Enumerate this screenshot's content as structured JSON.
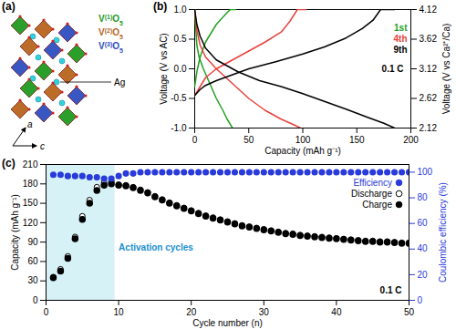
{
  "chart_data": [
    {
      "panel_label": "(b)",
      "type": "line",
      "x_label": "Capacity (mAh g⁻¹)",
      "y_label": "Voltage (V vs AC)",
      "y2_label": "Voltage (V vs Ca²⁺/Ca)",
      "annotation": "0.1 C",
      "xlim": [
        0,
        200
      ],
      "xticks": [
        0,
        50,
        100,
        150,
        200
      ],
      "ylim": [
        -1,
        1
      ],
      "yticks": [
        {
          "value": -1,
          "label": "-1.0"
        },
        {
          "value": -0.5,
          "label": "-0.5"
        },
        {
          "value": 0,
          "label": "0.0"
        },
        {
          "value": 0.5,
          "label": "0.5"
        },
        {
          "value": 1,
          "label": "1.0"
        }
      ],
      "y2lim": [
        2.12,
        4.12
      ],
      "y2ticks": [
        2.12,
        2.62,
        3.12,
        3.62,
        4.12
      ],
      "series": [
        {
          "name": "1st",
          "color": "#22a022",
          "x": [
            0,
            1,
            2,
            4,
            8,
            14,
            20,
            26,
            30,
            35,
            null,
            0,
            2,
            5,
            10,
            15,
            20,
            25,
            30,
            33,
            38
          ],
          "values": [
            1.0,
            0.7,
            0.4,
            0.2,
            0.0,
            -0.25,
            -0.5,
            -0.7,
            -0.85,
            -1.0,
            null,
            -0.3,
            -0.05,
            0.2,
            0.45,
            0.6,
            0.75,
            0.85,
            0.95,
            1.0,
            1.0
          ]
        },
        {
          "name": "4th",
          "color": "#e8413c",
          "x": [
            0,
            2,
            5,
            10,
            20,
            35,
            50,
            65,
            80,
            90,
            98,
            null,
            0,
            5,
            10,
            20,
            35,
            50,
            65,
            80,
            88,
            95,
            103
          ],
          "values": [
            1.0,
            0.65,
            0.4,
            0.2,
            0.0,
            -0.25,
            -0.5,
            -0.7,
            -0.85,
            -0.93,
            -1.0,
            null,
            -0.45,
            -0.3,
            -0.15,
            0.0,
            0.15,
            0.3,
            0.45,
            0.62,
            0.8,
            1.0,
            1.0
          ]
        },
        {
          "name": "9th",
          "color": "#000000",
          "x": [
            0,
            2,
            5,
            10,
            20,
            40,
            60,
            80,
            100,
            120,
            140,
            160,
            175,
            185,
            null,
            0,
            5,
            10,
            20,
            35,
            50,
            75,
            100,
            120,
            140,
            155,
            165,
            172,
            185
          ],
          "values": [
            1.0,
            0.75,
            0.55,
            0.35,
            0.15,
            -0.05,
            -0.2,
            -0.3,
            -0.42,
            -0.55,
            -0.68,
            -0.82,
            -0.92,
            -1.0,
            null,
            -0.45,
            -0.35,
            -0.28,
            -0.2,
            -0.1,
            0.0,
            0.12,
            0.25,
            0.37,
            0.52,
            0.68,
            0.82,
            1.0,
            1.0
          ]
        }
      ]
    },
    {
      "panel_label": "(c)",
      "type": "scatter",
      "x_label": "Cycle number (n)",
      "y_label": "Capacity (mAh g⁻¹)",
      "y2_label": "Coulombic efficiency (%)",
      "annotation": "0.1 C",
      "highlight": {
        "label": "Activation cycles",
        "x": [
          0,
          9.5
        ]
      },
      "xlim": [
        0,
        50
      ],
      "xticks": [
        0,
        10,
        20,
        30,
        40,
        50
      ],
      "ylim": [
        0,
        210
      ],
      "yticks": [
        0,
        30,
        60,
        90,
        120,
        150,
        180,
        210
      ],
      "y2lim": [
        0,
        106
      ],
      "y2ticks": [
        0,
        20,
        40,
        60,
        80,
        100
      ],
      "legend": "top-right",
      "x": [
        1,
        2,
        3,
        4,
        5,
        6,
        7,
        8,
        9,
        10,
        11,
        12,
        13,
        14,
        15,
        16,
        17,
        18,
        19,
        20,
        21,
        22,
        23,
        24,
        25,
        26,
        27,
        28,
        29,
        30,
        31,
        32,
        33,
        34,
        35,
        36,
        37,
        38,
        39,
        40,
        41,
        42,
        43,
        44,
        45,
        46,
        47,
        48,
        49,
        50
      ],
      "series": [
        {
          "name": "Efficiency",
          "color": "#2a3bdb",
          "marker": "circle",
          "axis": "y2",
          "values": [
            98,
            98,
            97,
            97,
            97,
            96,
            96,
            95,
            95,
            97,
            99,
            99,
            100,
            100,
            100,
            100,
            100,
            100,
            100,
            100,
            100,
            100,
            100,
            100,
            100,
            100,
            100,
            100,
            100,
            100,
            100,
            100,
            100,
            100,
            100,
            100,
            100,
            100,
            100,
            100,
            100,
            100,
            100,
            100,
            100,
            100,
            100,
            100,
            100,
            100
          ]
        },
        {
          "name": "Discharge",
          "color": "#000000",
          "marker": "open_circle",
          "values": [
            36,
            48,
            68,
            98,
            130,
            155,
            175,
            182,
            184,
            179,
            178,
            175,
            171,
            167,
            161,
            156,
            151,
            147,
            143,
            139,
            135,
            131,
            128,
            125,
            122,
            119,
            116,
            114,
            112,
            110,
            108,
            106,
            104,
            103,
            101,
            100,
            99,
            98,
            97,
            96,
            95,
            94,
            93,
            92,
            92,
            91,
            91,
            90,
            89,
            89
          ]
        },
        {
          "name": "Charge",
          "color": "#000000",
          "marker": "circle",
          "values": [
            35,
            45,
            65,
            95,
            125,
            150,
            170,
            178,
            180,
            178,
            177,
            174,
            170,
            166,
            160,
            155,
            150,
            146,
            142,
            138,
            134,
            130,
            127,
            124,
            121,
            118,
            115,
            113,
            111,
            109,
            107,
            105,
            103,
            102,
            100,
            99,
            98,
            97,
            96,
            95,
            94,
            93,
            92,
            91,
            91,
            90,
            90,
            89,
            88,
            88
          ]
        }
      ]
    }
  ],
  "diagram": {
    "panel_label": "(a)",
    "legend": [
      {
        "label": "V(1)O5",
        "color": "#1f9a1f"
      },
      {
        "label": "V(2)O5",
        "color": "#b8651e"
      },
      {
        "label": "V(3)O5",
        "color": "#2f4fc0"
      }
    ],
    "ion_label": "Ag",
    "ion_color": "#2fd3e0",
    "axis_labels": [
      "a",
      "c"
    ]
  }
}
